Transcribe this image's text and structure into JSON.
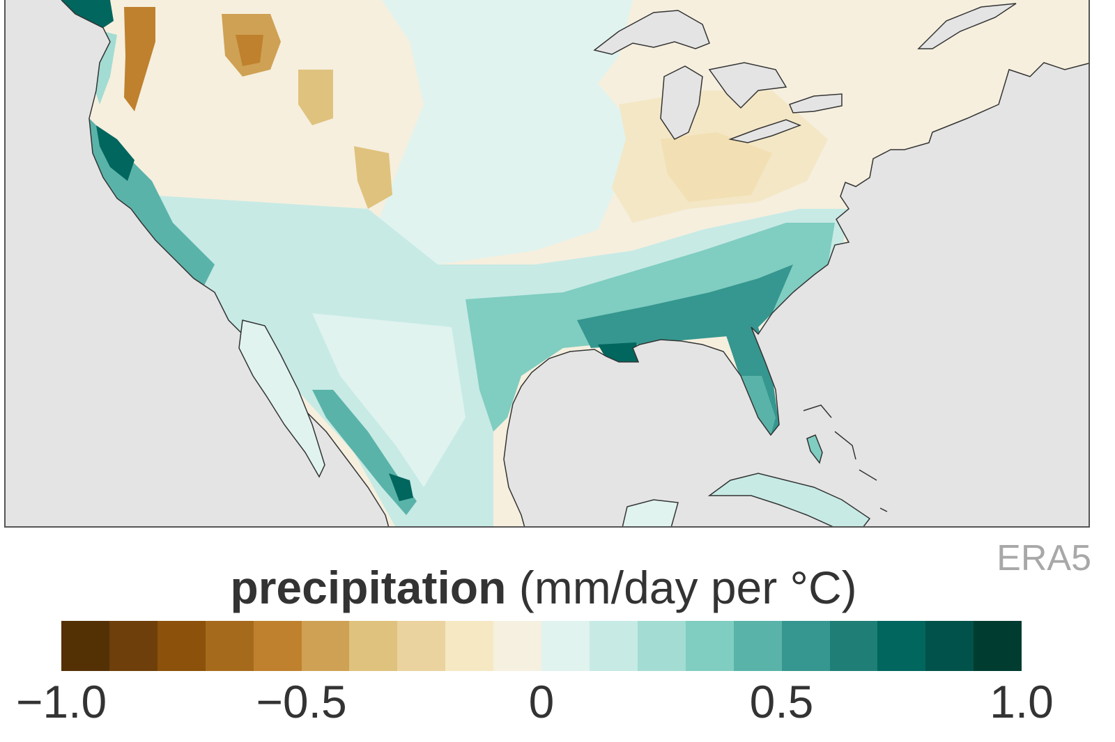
{
  "map": {
    "ocean_color": "#e4e4e4",
    "coastline_color": "#333333",
    "regions": [
      {
        "name": "pacific-northwest-coast",
        "value": 0.85
      },
      {
        "name": "cascade-range-east",
        "value": -0.55
      },
      {
        "name": "northern-rockies",
        "value": -0.5
      },
      {
        "name": "great-basin",
        "value": -0.15
      },
      {
        "name": "colorado-plateau",
        "value": -0.3
      },
      {
        "name": "california-coast",
        "value": 0.9
      },
      {
        "name": "southwest-desert",
        "value": 0.3
      },
      {
        "name": "great-plains",
        "value": 0.1
      },
      {
        "name": "midwest",
        "value": -0.05
      },
      {
        "name": "ohio-valley",
        "value": -0.2
      },
      {
        "name": "northeast",
        "value": -0.05
      },
      {
        "name": "southeast",
        "value": 0.55
      },
      {
        "name": "gulf-coast-louisiana",
        "value": 0.85
      },
      {
        "name": "florida",
        "value": 0.6
      },
      {
        "name": "texas",
        "value": 0.15
      },
      {
        "name": "mexico-sierra-madre",
        "value": 0.6
      },
      {
        "name": "mexican-plateau",
        "value": 0.15
      },
      {
        "name": "cuba",
        "value": 0.35
      }
    ]
  },
  "source": "ERA5",
  "colorbar": {
    "variable": "precipitation",
    "units": "(mm/day per °C)",
    "min": -1.0,
    "max": 1.0,
    "colors": [
      "#543005",
      "#6e3f0b",
      "#8c510a",
      "#a66a1c",
      "#bf812d",
      "#cfa154",
      "#dfc27d",
      "#ead39f",
      "#f6e8c3",
      "#f6f0e0",
      "#e0f3ef",
      "#c7eae5",
      "#a3dcd3",
      "#80cdc1",
      "#5ab3a9",
      "#35978f",
      "#1f7f77",
      "#01665e",
      "#01524a",
      "#003c30"
    ],
    "ticks": [
      {
        "value": -1.0,
        "label": "−1.0"
      },
      {
        "value": -0.5,
        "label": "−0.5"
      },
      {
        "value": 0,
        "label": "0"
      },
      {
        "value": 0.5,
        "label": "0.5"
      },
      {
        "value": 1.0,
        "label": "1.0"
      }
    ]
  }
}
